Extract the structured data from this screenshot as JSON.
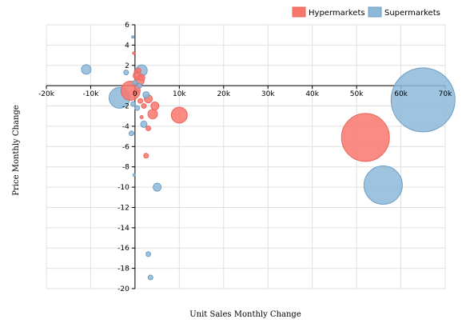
{
  "chart_data": {
    "type": "scatter",
    "subtype": "bubble",
    "xlabel": "Unit Sales Monthly Change",
    "ylabel": "Price Monthly Change",
    "xlim": [
      -20000,
      70000
    ],
    "ylim": [
      -20,
      6
    ],
    "x_ticks": [
      -20000,
      -10000,
      0,
      10000,
      20000,
      30000,
      40000,
      50000,
      60000,
      70000
    ],
    "x_tick_labels": [
      "-20k",
      "-10k",
      "0",
      "10k",
      "20k",
      "30k",
      "40k",
      "50k",
      "60k",
      "70k"
    ],
    "y_ticks": [
      6,
      4,
      2,
      0,
      -2,
      -4,
      -6,
      -8,
      -10,
      -12,
      -14,
      -16,
      -18,
      -20
    ],
    "y_tick_labels": [
      "6",
      "4",
      "2",
      "",
      "-2",
      "-4",
      "-6",
      "-8",
      "-10",
      "-12",
      "-14",
      "-16",
      "-18",
      "-20"
    ],
    "grid": true,
    "legend_position": "top-right",
    "series": [
      {
        "name": "Hypermarkets",
        "color": "#f8776d",
        "points": [
          {
            "x": 52000,
            "y": -5.1,
            "size": 30
          },
          {
            "x": 10000,
            "y": -2.9,
            "size": 10
          },
          {
            "x": -1000,
            "y": -0.5,
            "size": 12
          },
          {
            "x": 1000,
            "y": 0.5,
            "size": 6
          },
          {
            "x": 500,
            "y": 1.0,
            "size": 5
          },
          {
            "x": 1500,
            "y": 0.8,
            "size": 4
          },
          {
            "x": 3000,
            "y": -1.3,
            "size": 5
          },
          {
            "x": 4500,
            "y": -2.0,
            "size": 5
          },
          {
            "x": 4000,
            "y": -2.8,
            "size": 6
          },
          {
            "x": 2000,
            "y": -2.0,
            "size": 3
          },
          {
            "x": 1200,
            "y": -1.5,
            "size": 3
          },
          {
            "x": 3000,
            "y": -4.2,
            "size": 3
          },
          {
            "x": 2500,
            "y": -6.9,
            "size": 3
          },
          {
            "x": 800,
            "y": 1.5,
            "size": 3
          },
          {
            "x": 200,
            "y": 1.4,
            "size": 2
          },
          {
            "x": -300,
            "y": 3.2,
            "size": 1.5
          },
          {
            "x": 1500,
            "y": -3.1,
            "size": 2
          },
          {
            "x": 200,
            "y": -0.6,
            "size": 3
          }
        ]
      },
      {
        "name": "Supermarkets",
        "color": "#8db9d8",
        "points": [
          {
            "x": 65000,
            "y": -1.4,
            "size": 40
          },
          {
            "x": 56000,
            "y": -9.8,
            "size": 24
          },
          {
            "x": -3500,
            "y": -1.2,
            "size": 13
          },
          {
            "x": -11000,
            "y": 1.6,
            "size": 6
          },
          {
            "x": 1500,
            "y": 1.5,
            "size": 7
          },
          {
            "x": 5000,
            "y": -10.0,
            "size": 5
          },
          {
            "x": 2000,
            "y": -3.8,
            "size": 4
          },
          {
            "x": 2500,
            "y": -0.9,
            "size": 4
          },
          {
            "x": 3000,
            "y": -16.6,
            "size": 3
          },
          {
            "x": 3500,
            "y": -18.9,
            "size": 3
          },
          {
            "x": -800,
            "y": -4.7,
            "size": 3
          },
          {
            "x": 500,
            "y": -2.2,
            "size": 3
          },
          {
            "x": -500,
            "y": 4.8,
            "size": 1.5
          },
          {
            "x": -200,
            "y": -8.8,
            "size": 1.5
          },
          {
            "x": -2000,
            "y": 1.3,
            "size": 3
          },
          {
            "x": 0,
            "y": 0.3,
            "size": 3
          },
          {
            "x": 1000,
            "y": 0.0,
            "size": 3
          },
          {
            "x": -400,
            "y": -1.8,
            "size": 3
          }
        ]
      }
    ]
  }
}
